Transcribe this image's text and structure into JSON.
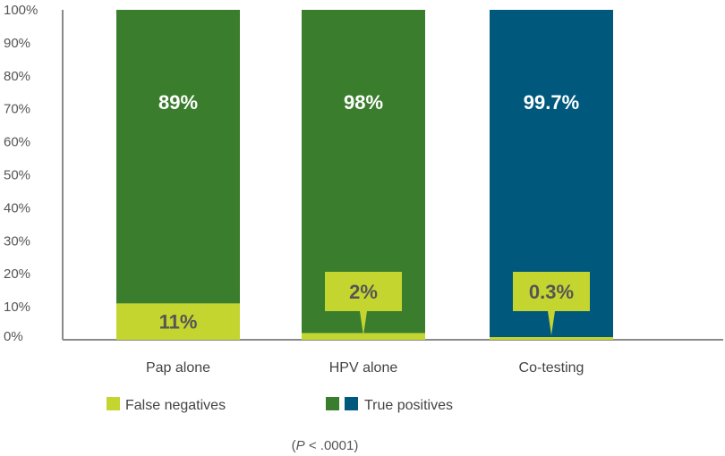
{
  "chart_data": {
    "type": "bar",
    "stacked": true,
    "categories": [
      "Pap alone",
      "HPV alone",
      "Co-testing"
    ],
    "series": [
      {
        "name": "False negatives",
        "values": [
          11,
          2,
          0.3
        ],
        "labels": [
          "11%",
          "2%",
          "0.3%"
        ]
      },
      {
        "name": "True positives",
        "values": [
          89,
          98,
          99.7
        ],
        "labels": [
          "89%",
          "98%",
          "99.7%"
        ]
      }
    ],
    "ylim": [
      0,
      100
    ],
    "yticks": [
      "0%",
      "10%",
      "20%",
      "30%",
      "40%",
      "50%",
      "60%",
      "70%",
      "80%",
      "90%",
      "100%"
    ],
    "grid": false,
    "legend": [
      "False negatives",
      "True positives"
    ],
    "legend_position": "bottom",
    "note": {
      "open": "(",
      "italic": "P",
      "rest": " < .0001)"
    },
    "colors": {
      "false_negatives": "#c5d52f",
      "true_positives_green": "#3a7d2c",
      "true_positives_blue": "#00587c",
      "axis": "#8a8a8a",
      "label_light": "#ffffff",
      "label_dark": "#555555"
    },
    "bar_colors": [
      "#3a7d2c",
      "#3a7d2c",
      "#00587c"
    ]
  }
}
